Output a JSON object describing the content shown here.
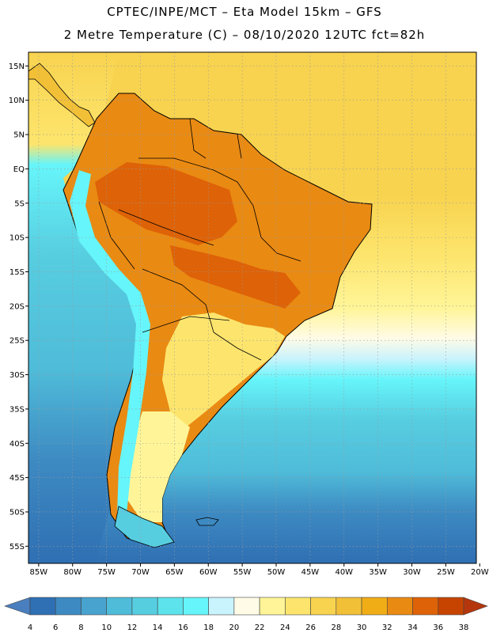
{
  "header": {
    "line1": "CPTEC/INPE/MCT –  Eta Model 15km – GFS",
    "line2": "2 Metre Temperature (C) – 08/10/2020 12UTC fct=82h"
  },
  "map": {
    "lat_labels": [
      "15N",
      "10N",
      "5N",
      "EQ",
      "5S",
      "10S",
      "15S",
      "20S",
      "25S",
      "30S",
      "35S",
      "40S",
      "45S",
      "50S",
      "55S"
    ],
    "lon_labels": [
      "85W",
      "80W",
      "75W",
      "70W",
      "65W",
      "60W",
      "55W",
      "50W",
      "45W",
      "40W",
      "35W",
      "30W",
      "25W",
      "20W"
    ],
    "lat_range": [
      17,
      -57.5
    ],
    "lon_range": [
      -86.5,
      -20.5
    ],
    "grid": true
  },
  "legend": {
    "ticks": [
      "4",
      "6",
      "8",
      "10",
      "12",
      "14",
      "16",
      "18",
      "20",
      "22",
      "24",
      "26",
      "28",
      "30",
      "32",
      "34",
      "36",
      "38"
    ],
    "colors": [
      "#4a7fbf",
      "#2f6fb3",
      "#3d8ac2",
      "#49a3cf",
      "#4fbcd9",
      "#57cde0",
      "#5de3ec",
      "#66f5fa",
      "#c9f3fd",
      "#fffbe6",
      "#fff598",
      "#fde56d",
      "#f8d34f",
      "#f2c037",
      "#f1ad16",
      "#e98a13",
      "#de6207",
      "#c64400",
      "#b5360d"
    ]
  },
  "colors": {
    "ocean_pacific": "#4fbcd9",
    "ocean_atlantic": "#f8d34f",
    "land_hot": "#e98a13",
    "border": "#000000"
  }
}
